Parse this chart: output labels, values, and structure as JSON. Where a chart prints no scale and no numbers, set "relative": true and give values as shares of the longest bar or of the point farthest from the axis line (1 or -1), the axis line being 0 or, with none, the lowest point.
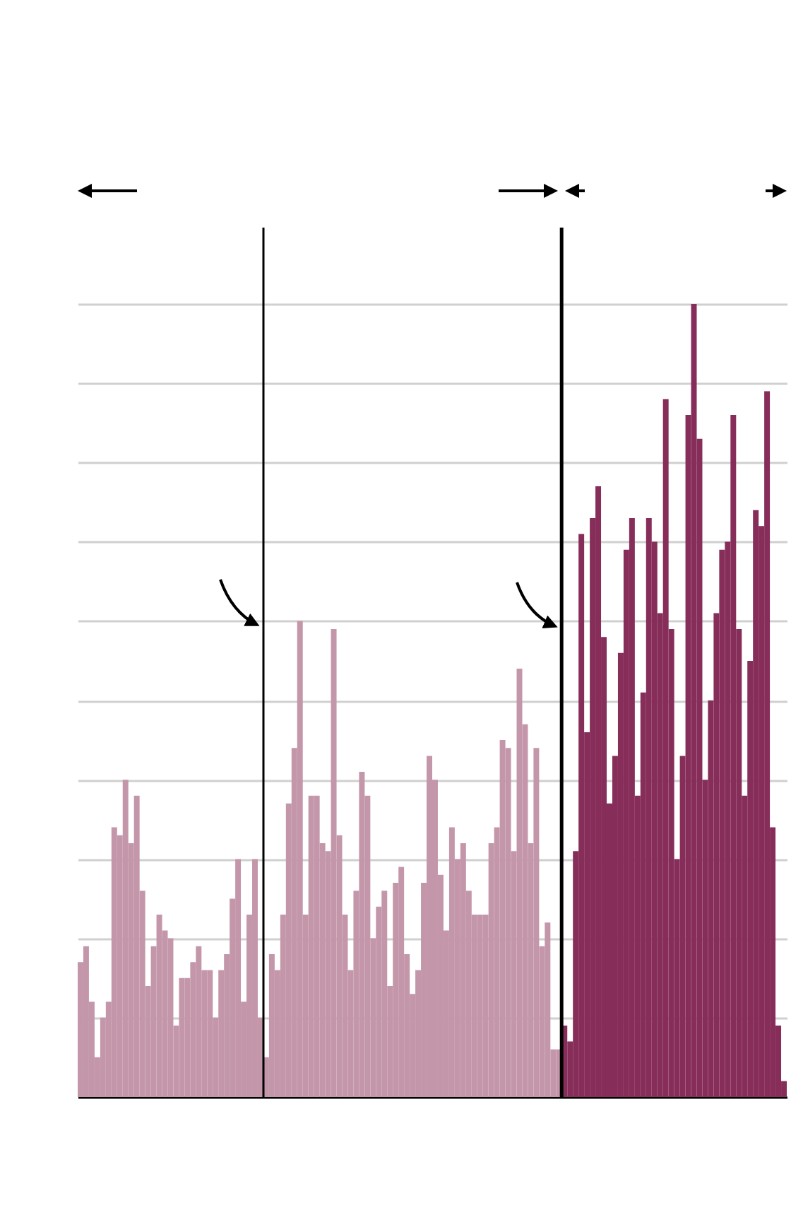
{
  "chart_data": {
    "type": "bar",
    "relative": true,
    "grid": "y",
    "categories": [
      null,
      null,
      null,
      null,
      null,
      null,
      null,
      null,
      null,
      null,
      null,
      null,
      null,
      null,
      null,
      null,
      null,
      null,
      null,
      null,
      null,
      null,
      null,
      null,
      null,
      null,
      null,
      null,
      null,
      null,
      null,
      null,
      null,
      null,
      null,
      null,
      null,
      null,
      null,
      null,
      null,
      null,
      null,
      null,
      null,
      null,
      null,
      null,
      null,
      null,
      null,
      null,
      null,
      null,
      null,
      null,
      null,
      null,
      null,
      null,
      null,
      null,
      null,
      null,
      null,
      null,
      null,
      null,
      null,
      null,
      null,
      null,
      null,
      null,
      null,
      null,
      null,
      null,
      null,
      null,
      null,
      null,
      null,
      null,
      null,
      null,
      null,
      null,
      null,
      null,
      null,
      null,
      null,
      null,
      null,
      null,
      null,
      null,
      null,
      null,
      null,
      null,
      null,
      null,
      null,
      null,
      null,
      null,
      null,
      null,
      null,
      null,
      null,
      null,
      null,
      null,
      null,
      null,
      null,
      null,
      null,
      null,
      null,
      null,
      null,
      null
    ],
    "values": [
      0.17,
      0.19,
      0.12,
      0.05,
      0.1,
      0.12,
      0.34,
      0.33,
      0.4,
      0.32,
      0.38,
      0.26,
      0.14,
      0.19,
      0.23,
      0.21,
      0.2,
      0.09,
      0.15,
      0.15,
      0.17,
      0.19,
      0.16,
      0.16,
      0.1,
      0.16,
      0.18,
      0.25,
      0.3,
      0.12,
      0.23,
      0.3,
      0.1,
      0.05,
      0.18,
      0.16,
      0.23,
      0.37,
      0.44,
      0.6,
      0.23,
      0.38,
      0.38,
      0.32,
      0.31,
      0.59,
      0.33,
      0.23,
      0.16,
      0.26,
      0.41,
      0.38,
      0.2,
      0.24,
      0.26,
      0.14,
      0.27,
      0.29,
      0.18,
      0.13,
      0.16,
      0.27,
      0.43,
      0.4,
      0.28,
      0.21,
      0.34,
      0.3,
      0.32,
      0.26,
      0.23,
      0.23,
      0.23,
      0.32,
      0.34,
      0.45,
      0.44,
      0.31,
      0.54,
      0.47,
      0.32,
      0.44,
      0.19,
      0.22,
      0.06,
      0.06,
      0.09,
      0.07,
      0.31,
      0.71,
      0.46,
      0.73,
      0.77,
      0.58,
      0.37,
      0.43,
      0.56,
      0.69,
      0.73,
      0.38,
      0.51,
      0.73,
      0.7,
      0.61,
      0.88,
      0.59,
      0.3,
      0.43,
      0.86,
      1,
      0.83,
      0.4,
      0.5,
      0.61,
      0.69,
      0.7,
      0.86,
      0.59,
      0.38,
      0.55,
      0.74,
      0.72,
      0.89,
      0.34,
      0.09,
      0.02
    ],
    "colors": [
      "#c496aa",
      "#c496aa",
      "#c496aa",
      "#c496aa",
      "#c496aa",
      "#c496aa",
      "#c496aa",
      "#c496aa",
      "#c496aa",
      "#c496aa",
      "#c496aa",
      "#c496aa",
      "#c496aa",
      "#c496aa",
      "#c496aa",
      "#c496aa",
      "#c496aa",
      "#c496aa",
      "#c496aa",
      "#c496aa",
      "#c496aa",
      "#c496aa",
      "#c496aa",
      "#c496aa",
      "#c496aa",
      "#c496aa",
      "#c496aa",
      "#c496aa",
      "#c496aa",
      "#c496aa",
      "#c496aa",
      "#c496aa",
      "#c496aa",
      "#c496aa",
      "#c496aa",
      "#c496aa",
      "#c496aa",
      "#c496aa",
      "#c496aa",
      "#c496aa",
      "#c496aa",
      "#c496aa",
      "#c496aa",
      "#c496aa",
      "#c496aa",
      "#c496aa",
      "#c496aa",
      "#c496aa",
      "#c496aa",
      "#c496aa",
      "#c496aa",
      "#c496aa",
      "#c496aa",
      "#c496aa",
      "#c496aa",
      "#c496aa",
      "#c496aa",
      "#c496aa",
      "#c496aa",
      "#c496aa",
      "#c496aa",
      "#c496aa",
      "#c496aa",
      "#c496aa",
      "#c496aa",
      "#c496aa",
      "#c496aa",
      "#c496aa",
      "#c496aa",
      "#c496aa",
      "#c496aa",
      "#c496aa",
      "#c496aa",
      "#c496aa",
      "#c496aa",
      "#c496aa",
      "#c496aa",
      "#c496aa",
      "#c496aa",
      "#c496aa",
      "#c496aa",
      "#c496aa",
      "#c496aa",
      "#c496aa",
      "#c496aa",
      "#c496aa",
      "#862d59",
      "#862d59",
      "#862d59",
      "#862d59",
      "#862d59",
      "#862d59",
      "#862d59",
      "#862d59",
      "#862d59",
      "#862d59",
      "#862d59",
      "#862d59",
      "#862d59",
      "#862d59",
      "#862d59",
      "#862d59",
      "#862d59",
      "#862d59",
      "#862d59",
      "#862d59",
      "#862d59",
      "#862d59",
      "#862d59",
      "#862d59",
      "#862d59",
      "#862d59",
      "#862d59",
      "#862d59",
      "#862d59",
      "#862d59",
      "#862d59",
      "#862d59",
      "#862d59",
      "#862d59",
      "#862d59",
      "#862d59",
      "#862d59",
      "#862d59",
      "#862d59",
      "#862d59"
    ]
  }
}
